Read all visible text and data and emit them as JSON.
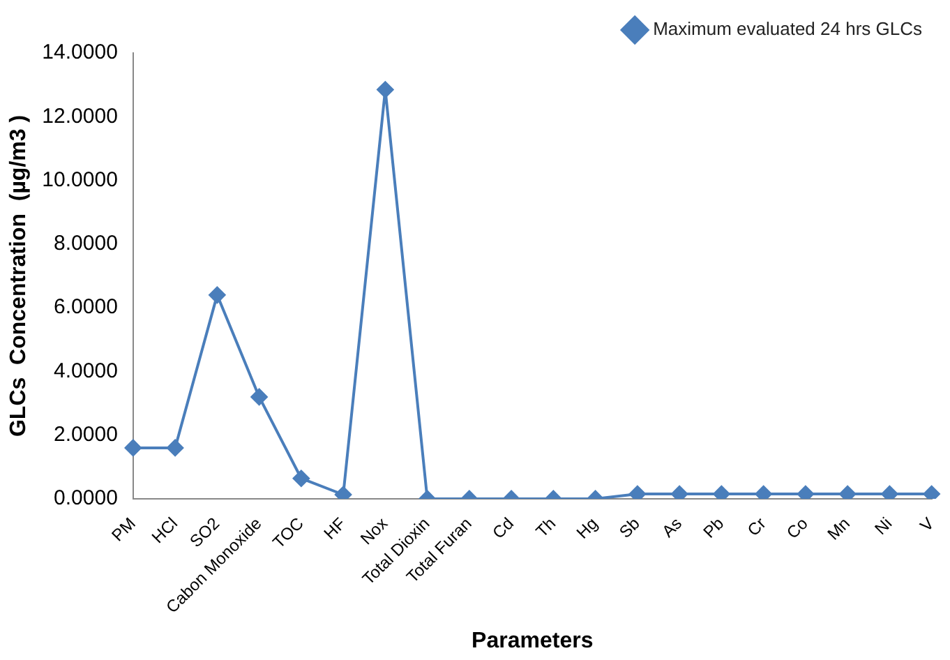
{
  "chart_data": {
    "type": "line",
    "xlabel": "Parameters",
    "ylabel": "GLCs  Concentration  (µg/m3 )",
    "categories": [
      "PM",
      "HCl",
      "SO2",
      "Cabon Monoxide",
      "TOC",
      "HF",
      "Nox",
      "Total Dioxin",
      "Total Furan",
      "Cd",
      "Th",
      "Hg",
      "Sb",
      "As",
      "Pb",
      "Cr",
      "Co",
      "Mn",
      "Ni",
      "V"
    ],
    "series": [
      {
        "name": "Maximum evaluated 24 hrs GLCs",
        "color": "#4a7ebb",
        "values": [
          1.6,
          1.6,
          6.4,
          3.2,
          0.64,
          0.13,
          12.85,
          0,
          0,
          0,
          0,
          0,
          0.15,
          0.15,
          0.15,
          0.15,
          0.15,
          0.15,
          0.15,
          0.15
        ]
      }
    ],
    "ylim": [
      0,
      14
    ],
    "yticks": [
      {
        "value": 0,
        "label": "0.0000"
      },
      {
        "value": 2,
        "label": "2.0000"
      },
      {
        "value": 4,
        "label": "4.0000"
      },
      {
        "value": 6,
        "label": "6.0000"
      },
      {
        "value": 8,
        "label": "8.0000"
      },
      {
        "value": 10,
        "label": "10.0000"
      },
      {
        "value": 12,
        "label": "12.0000"
      },
      {
        "value": 14,
        "label": "14.0000"
      }
    ],
    "grid": false,
    "legend": "top right",
    "marker": "diamond",
    "line_style": "solid"
  }
}
